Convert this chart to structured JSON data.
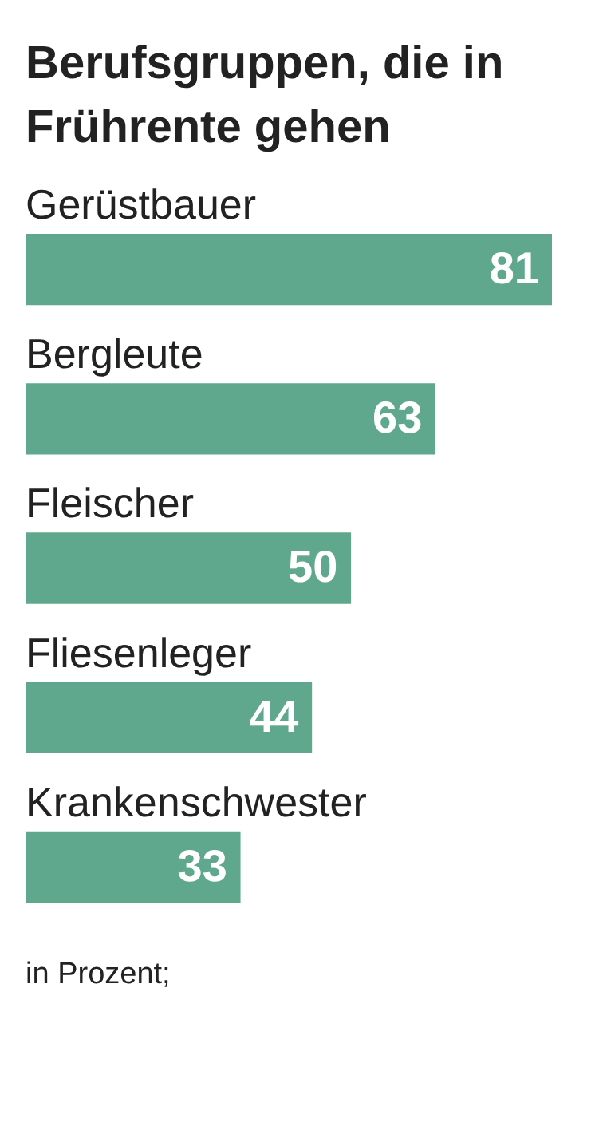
{
  "chart_data": {
    "type": "bar",
    "orientation": "horizontal",
    "title": "Berufsgruppen, die in Frührente gehen",
    "categories": [
      "Gerüstbauer",
      "Bergleute",
      "Fleischer",
      "Fliesenleger",
      "Krankenschwester"
    ],
    "values": [
      81,
      63,
      50,
      44,
      33
    ],
    "color": "#5fa88e",
    "data_labels": true,
    "annotations": [
      "in Prozent;"
    ]
  }
}
